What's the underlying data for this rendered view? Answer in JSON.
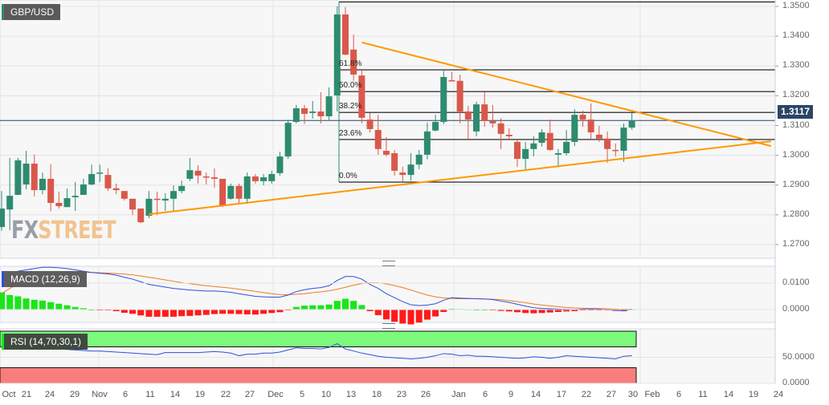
{
  "symbol": "GBP/USD",
  "current_price": "1.3117",
  "watermark": {
    "part1": "FX",
    "part2": "STREET"
  },
  "colors": {
    "up": "#2e8b6f",
    "down": "#d9584a",
    "trend": "#ff9800",
    "price_line": "#2b4566",
    "macd": "#2c4fe0",
    "signal": "#f07a21",
    "hist_pos": "#19e619",
    "hist_neg": "#ff1a1a",
    "rsi_over": "#7dfa7d",
    "rsi_under": "#fa7d7d",
    "rsi_line": "#2c4fe0"
  },
  "chart_data": [
    {
      "type": "candlestick",
      "title": "GBP/USD",
      "ylim": [
        1.265,
        1.352
      ],
      "y_ticks": [
        "1.3500",
        "1.3400",
        "1.3300",
        "1.3200",
        "1.3100",
        "1.3000",
        "1.2900",
        "1.2800",
        "1.2700"
      ],
      "x_ticks": [
        "Oct",
        "21",
        "24",
        "29",
        "Nov",
        "6",
        "11",
        "14",
        "19",
        "22",
        "27",
        "Dec",
        "5",
        "10",
        "13",
        "18",
        "23",
        "26",
        "Jan",
        "6",
        "9",
        "14",
        "17",
        "22",
        "27",
        "30",
        "Feb",
        "6",
        "11",
        "14",
        "19",
        "24"
      ],
      "grid": true,
      "candles_ohlc": [
        [
          1.2759,
          1.288,
          1.2746,
          1.2821
        ],
        [
          1.2818,
          1.2991,
          1.2748,
          1.2864
        ],
        [
          1.2867,
          1.2991,
          1.2895,
          1.2983
        ],
        [
          1.2902,
          1.3015,
          1.2886,
          1.2972
        ],
        [
          1.2972,
          1.3002,
          1.2862,
          1.2883
        ],
        [
          1.2883,
          1.2942,
          1.2869,
          1.2921
        ],
        [
          1.2921,
          1.297,
          1.2812,
          1.284
        ],
        [
          1.284,
          1.2878,
          1.2821,
          1.2829
        ],
        [
          1.2826,
          1.2888,
          1.2826,
          1.2856
        ],
        [
          1.2859,
          1.291,
          1.2813,
          1.2864
        ],
        [
          1.2867,
          1.2921,
          1.2875,
          1.2902
        ],
        [
          1.2902,
          1.2969,
          1.2899,
          1.2937
        ],
        [
          1.294,
          1.2969,
          1.291,
          1.2942
        ],
        [
          1.2934,
          1.2956,
          1.288,
          1.2889
        ],
        [
          1.2889,
          1.2905,
          1.2869,
          1.2883
        ],
        [
          1.288,
          1.288,
          1.2848,
          1.2854
        ],
        [
          1.2854,
          1.2854,
          1.2799,
          1.2818
        ],
        [
          1.2821,
          1.2821,
          1.2772,
          1.2775
        ],
        [
          1.2797,
          1.288,
          1.2789,
          1.2854
        ],
        [
          1.2854,
          1.2878,
          1.2799,
          1.2851
        ],
        [
          1.2848,
          1.2872,
          1.2813,
          1.2854
        ],
        [
          1.2854,
          1.2899,
          1.2813,
          1.288
        ],
        [
          1.288,
          1.2915,
          1.2872,
          1.2897
        ],
        [
          1.2921,
          1.2991,
          1.2913,
          1.295
        ],
        [
          1.2948,
          1.2967,
          1.2905,
          1.2932
        ],
        [
          1.2929,
          1.2942,
          1.2902,
          1.2926
        ],
        [
          1.2926,
          1.2956,
          1.2891,
          1.2921
        ],
        [
          1.2921,
          1.2921,
          1.2826,
          1.2832
        ],
        [
          1.2854,
          1.2905,
          1.2851,
          1.2897
        ],
        [
          1.2897,
          1.2905,
          1.284,
          1.2854
        ],
        [
          1.2854,
          1.2942,
          1.2837,
          1.2929
        ],
        [
          1.2929,
          1.2937,
          1.2905,
          1.2913
        ],
        [
          1.2913,
          1.2937,
          1.2899,
          1.2926
        ],
        [
          1.2913,
          1.2948,
          1.2905,
          1.2937
        ],
        [
          1.294,
          1.3012,
          1.2932,
          1.2996
        ],
        [
          1.2996,
          1.312,
          1.2988,
          1.3109
        ],
        [
          1.3112,
          1.3169,
          1.3107,
          1.3158
        ],
        [
          1.3158,
          1.3169,
          1.3105,
          1.3139
        ],
        [
          1.3142,
          1.3182,
          1.3123,
          1.3147
        ],
        [
          1.3147,
          1.3212,
          1.3107,
          1.3131
        ],
        [
          1.3131,
          1.3228,
          1.3115,
          1.3198
        ],
        [
          1.3201,
          1.35,
          1.3147,
          1.3473
        ],
        [
          1.3473,
          1.3498,
          1.3336,
          1.3338
        ],
        [
          1.3355,
          1.3406,
          1.325,
          1.3271
        ],
        [
          1.3268,
          1.3287,
          1.3107,
          1.3126
        ],
        [
          1.312,
          1.3142,
          1.3077,
          1.3088
        ],
        [
          1.3085,
          1.3136,
          1.3002,
          1.3021
        ],
        [
          1.3015,
          1.3061,
          1.2996,
          1.3002
        ],
        [
          1.3007,
          1.3018,
          1.2932,
          1.2948
        ],
        [
          1.2942,
          1.2962,
          1.291,
          1.2934
        ],
        [
          1.2934,
          1.3007,
          1.2915,
          1.2969
        ],
        [
          1.2969,
          1.3018,
          1.2953,
          1.3002
        ],
        [
          1.3002,
          1.311,
          1.2986,
          1.308
        ],
        [
          1.3083,
          1.3136,
          1.308,
          1.3112
        ],
        [
          1.3112,
          1.3284,
          1.3104,
          1.3263
        ],
        [
          1.3252,
          1.3279,
          1.3249,
          1.325
        ],
        [
          1.325,
          1.3271,
          1.3107,
          1.3147
        ],
        [
          1.3147,
          1.3166,
          1.305,
          1.312
        ],
        [
          1.308,
          1.318,
          1.3064,
          1.3171
        ],
        [
          1.3171,
          1.3212,
          1.3096,
          1.3115
        ],
        [
          1.3115,
          1.3169,
          1.3093,
          1.3107
        ],
        [
          1.3107,
          1.3125,
          1.3021,
          1.3072
        ],
        [
          1.3069,
          1.3091,
          1.305,
          1.3064
        ],
        [
          1.3045,
          1.305,
          1.2961,
          1.2988
        ],
        [
          1.2988,
          1.3045,
          1.2951,
          1.3021
        ],
        [
          1.3021,
          1.3064,
          1.2996,
          1.304
        ],
        [
          1.3042,
          1.3088,
          1.3029,
          1.3077
        ],
        [
          1.3075,
          1.312,
          1.3015,
          1.3018
        ],
        [
          1.3002,
          1.3021,
          1.2962,
          1.3007
        ],
        [
          1.3007,
          1.3085,
          1.2999,
          1.3045
        ],
        [
          1.3045,
          1.3155,
          1.3031,
          1.3136
        ],
        [
          1.3136,
          1.315,
          1.3096,
          1.312
        ],
        [
          1.312,
          1.3174,
          1.3053,
          1.3077
        ],
        [
          1.3069,
          1.3099,
          1.3045,
          1.3056
        ],
        [
          1.3056,
          1.308,
          1.2975,
          1.3021
        ],
        [
          1.3018,
          1.304,
          1.2996,
          1.3015
        ],
        [
          1.3015,
          1.3107,
          1.2978,
          1.3093
        ],
        [
          1.3093,
          1.3142,
          1.3086,
          1.3115
        ]
      ],
      "fibonacci": [
        {
          "label": "61.8%",
          "price": 1.3287
        },
        {
          "label": "50.0%",
          "price": 1.3214
        },
        {
          "label": "38.2%",
          "price": 1.3144
        },
        {
          "label": "23.6%",
          "price": 1.3053
        },
        {
          "label": "0.0%",
          "price": 1.291
        },
        {
          "label": "",
          "price": 1.3515
        }
      ],
      "trendlines": [
        {
          "from": [
            44,
            1.3379
          ],
          "to": [
            94,
            1.3031
          ]
        },
        {
          "from": [
            18,
            1.2802
          ],
          "to": [
            94,
            1.3047
          ]
        }
      ]
    },
    {
      "type": "line",
      "title": "MACD (12,26,9)",
      "ylim": [
        -0.005,
        0.017
      ],
      "y_ticks": [
        "0.0100",
        "0.0000"
      ],
      "macd": [
        0.0125,
        0.0135,
        0.0145,
        0.015,
        0.0155,
        0.016,
        0.016,
        0.0158,
        0.0155,
        0.015,
        0.0145,
        0.014,
        0.0137,
        0.0135,
        0.013,
        0.0122,
        0.0115,
        0.0105,
        0.0095,
        0.009,
        0.0085,
        0.008,
        0.0077,
        0.0074,
        0.0072,
        0.007,
        0.007,
        0.0068,
        0.0065,
        0.006,
        0.0055,
        0.005,
        0.0048,
        0.0047,
        0.0047,
        0.0055,
        0.0068,
        0.0075,
        0.008,
        0.0083,
        0.009,
        0.011,
        0.0125,
        0.0125,
        0.0115,
        0.0095,
        0.008,
        0.006,
        0.0045,
        0.003,
        0.0018,
        0.0015,
        0.0017,
        0.0022,
        0.0035,
        0.0045,
        0.0043,
        0.0042,
        0.0041,
        0.004,
        0.0038,
        0.0032,
        0.0027,
        0.002,
        0.0013,
        0.0007,
        0.0004,
        0.0003,
        0.0002,
        0.0001,
        0,
        0.0002,
        0.0003,
        0.0002,
        0,
        -0.0003,
        -0.0005,
        0.0002
      ],
      "signal": [
        0.006,
        0.008,
        0.0095,
        0.0108,
        0.0118,
        0.0126,
        0.0132,
        0.0136,
        0.0139,
        0.014,
        0.014,
        0.014,
        0.0139,
        0.0138,
        0.0136,
        0.0134,
        0.0131,
        0.0127,
        0.0122,
        0.0117,
        0.0112,
        0.0107,
        0.0102,
        0.0098,
        0.0094,
        0.009,
        0.0087,
        0.0084,
        0.0081,
        0.0077,
        0.0073,
        0.0069,
        0.0064,
        0.006,
        0.0057,
        0.0056,
        0.0058,
        0.006,
        0.0064,
        0.0067,
        0.0071,
        0.0077,
        0.0084,
        0.0092,
        0.0098,
        0.0101,
        0.0101,
        0.0097,
        0.0091,
        0.0083,
        0.0074,
        0.0064,
        0.0055,
        0.0048,
        0.0044,
        0.0042,
        0.0041,
        0.0041,
        0.0041,
        0.004,
        0.0039,
        0.0037,
        0.0034,
        0.003,
        0.0026,
        0.0021,
        0.0017,
        0.0014,
        0.0011,
        0.0008,
        0.0006,
        0.0005,
        0.0004,
        0.0004,
        0.0003,
        0.0002,
        0.0001,
        0.0001
      ]
    },
    {
      "type": "line",
      "title": "RSI (14,70,30,1)",
      "ylim": [
        0,
        100
      ],
      "y_ticks": [
        "50.0000",
        "0.0000"
      ],
      "bands": {
        "overbought": 70,
        "oversold": 30
      },
      "rsi": [
        68,
        69,
        70,
        69,
        68,
        67,
        67,
        66,
        65,
        64,
        63,
        62,
        62,
        61,
        60,
        59,
        58,
        57,
        56,
        55,
        59,
        59,
        59,
        59,
        59,
        60,
        61,
        60,
        58,
        53,
        56,
        56,
        58,
        58,
        60,
        64,
        68,
        67,
        67,
        66,
        69,
        76,
        66,
        62,
        58,
        55,
        52,
        50,
        49,
        48,
        47,
        48,
        50,
        53,
        57,
        56,
        53,
        54,
        52,
        52,
        51,
        50,
        49,
        48,
        49,
        51,
        50,
        48,
        50,
        53,
        52,
        51,
        50,
        49,
        48,
        47,
        52,
        53
      ]
    }
  ]
}
